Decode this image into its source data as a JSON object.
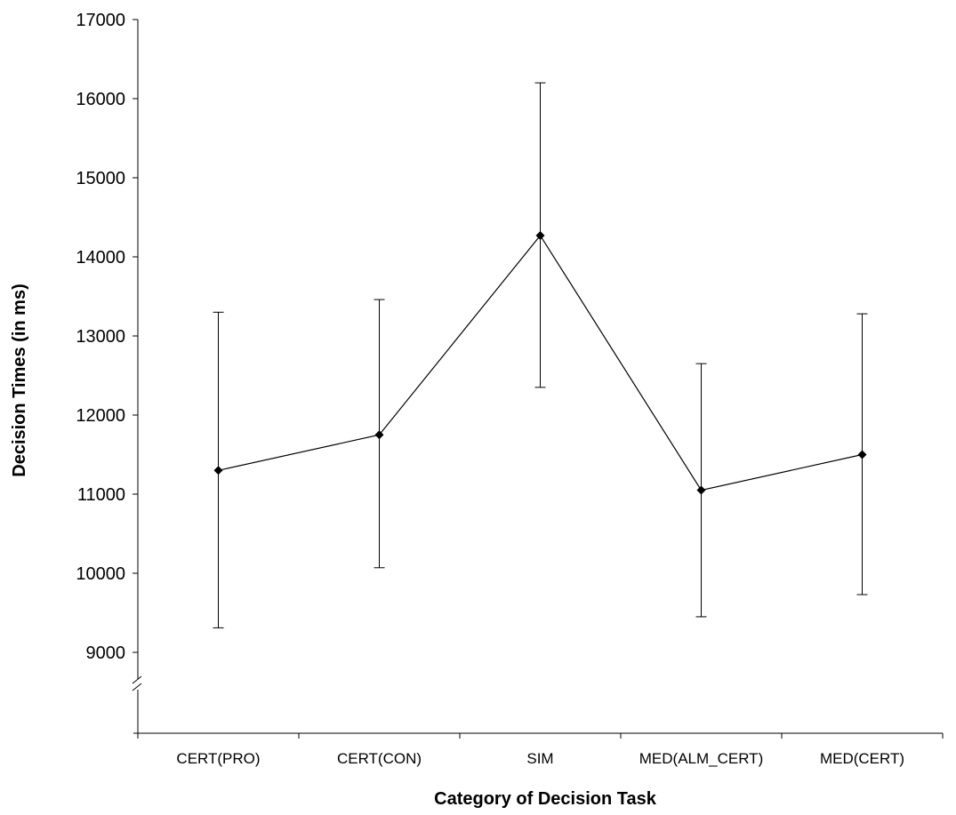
{
  "chart_data": {
    "type": "line",
    "title": "",
    "xlabel": "Category of Decision Task",
    "ylabel": "Decision Times (in ms)",
    "categories": [
      "CERT(PRO)",
      "CERT(CON)",
      "SIM",
      "MED(ALM_CERT)",
      "MED(CERT)"
    ],
    "series": [
      {
        "values": [
          11300,
          11750,
          14270,
          11050,
          11500
        ],
        "error_upper": [
          13300,
          13460,
          16200,
          12650,
          13280
        ],
        "error_lower": [
          9310,
          10070,
          12350,
          9450,
          9730
        ]
      }
    ],
    "ylim": [
      8000,
      17000
    ],
    "yticks": [
      "9000",
      "10000",
      "11000",
      "12000",
      "13000",
      "14000",
      "15000",
      "16000",
      "17000"
    ],
    "axis_break": true,
    "grid": false,
    "legend": "none",
    "line_color": "#000000",
    "marker": "diamond"
  }
}
